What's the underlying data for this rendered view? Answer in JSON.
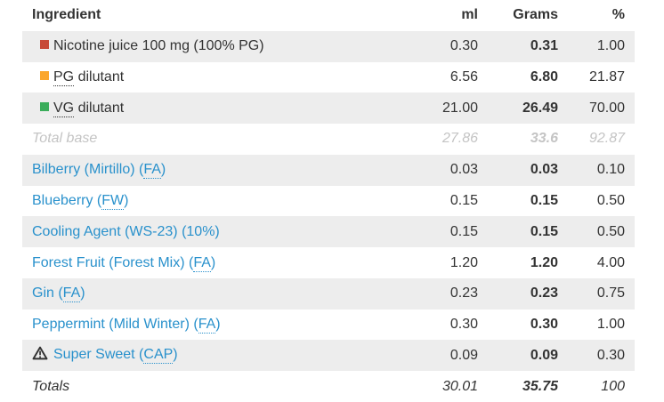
{
  "table": {
    "columns": {
      "ingredient": "Ingredient",
      "ml": "ml",
      "grams": "Grams",
      "pct": "%"
    },
    "rows": [
      {
        "kind": "base",
        "icon": "red-square-icon",
        "icon_color": "#c74a38",
        "pre": "Nicotine juice 100 mg (100% PG)",
        "abbr": "",
        "post": "",
        "ml": "0.30",
        "grams": "0.31",
        "pct": "1.00"
      },
      {
        "kind": "base",
        "icon": "orange-square-icon",
        "icon_color": "#fba62c",
        "pre": "",
        "abbr": "PG",
        "post": " dilutant",
        "ml": "6.56",
        "grams": "6.80",
        "pct": "21.87"
      },
      {
        "kind": "base",
        "icon": "green-square-icon",
        "icon_color": "#3bad5b",
        "pre": "",
        "abbr": "VG",
        "post": " dilutant",
        "ml": "21.00",
        "grams": "26.49",
        "pct": "70.00"
      },
      {
        "kind": "total-base",
        "pre": "Total base",
        "abbr": "",
        "post": "",
        "ml": "27.86",
        "grams": "33.6",
        "pct": "92.87"
      },
      {
        "kind": "flavor",
        "pre": "Bilberry (Mirtillo) (",
        "abbr": "FA",
        "post": ")",
        "ml": "0.03",
        "grams": "0.03",
        "pct": "0.10"
      },
      {
        "kind": "flavor",
        "pre": "Blueberry (",
        "abbr": "FW",
        "post": ")",
        "ml": "0.15",
        "grams": "0.15",
        "pct": "0.50"
      },
      {
        "kind": "flavor",
        "pre": "Cooling Agent (WS-23) (10%)",
        "abbr": "",
        "post": "",
        "ml": "0.15",
        "grams": "0.15",
        "pct": "0.50"
      },
      {
        "kind": "flavor",
        "pre": "Forest Fruit (Forest Mix) (",
        "abbr": "FA",
        "post": ")",
        "ml": "1.20",
        "grams": "1.20",
        "pct": "4.00"
      },
      {
        "kind": "flavor",
        "pre": "Gin (",
        "abbr": "FA",
        "post": ")",
        "ml": "0.23",
        "grams": "0.23",
        "pct": "0.75"
      },
      {
        "kind": "flavor",
        "pre": "Peppermint (Mild Winter) (",
        "abbr": "FA",
        "post": ")",
        "ml": "0.30",
        "grams": "0.30",
        "pct": "1.00"
      },
      {
        "kind": "flavor",
        "icon": "warning-triangle-icon",
        "pre": "Super Sweet (",
        "abbr": "CAP",
        "post": ")",
        "ml": "0.09",
        "grams": "0.09",
        "pct": "0.30"
      },
      {
        "kind": "totals",
        "pre": "Totals",
        "abbr": "",
        "post": "",
        "ml": "30.01",
        "grams": "35.75",
        "pct": "100"
      }
    ]
  },
  "colors": {
    "stripe": "#ededed",
    "text": "#333333",
    "muted": "#c4c4c4",
    "link": "#2991cc",
    "warning": "#333333"
  }
}
